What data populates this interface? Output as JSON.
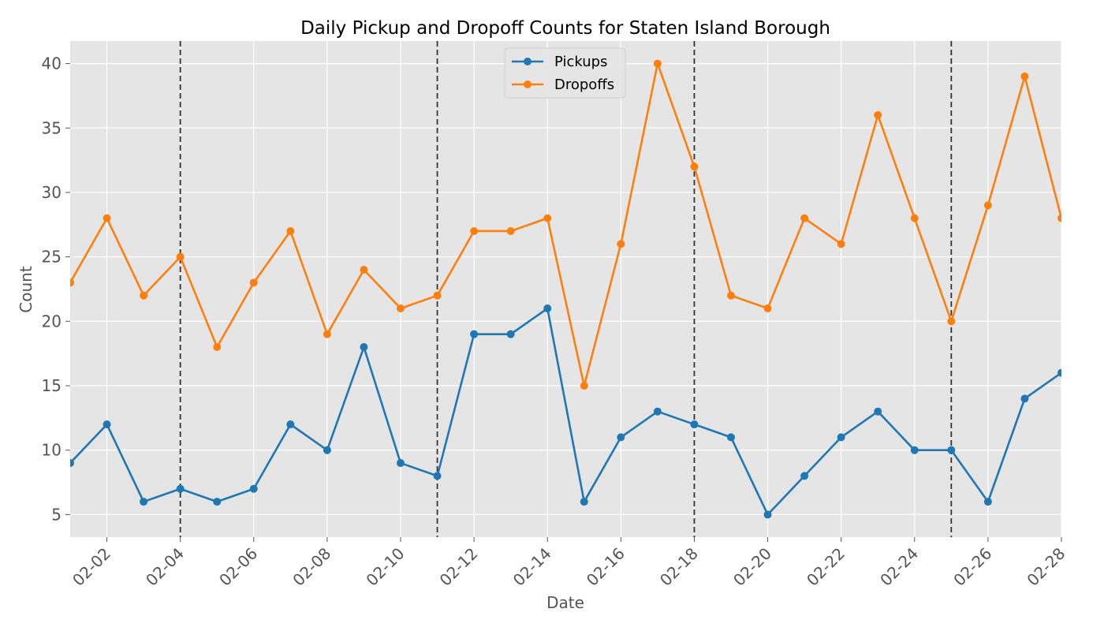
{
  "chart_data": {
    "type": "line",
    "title": "Daily Pickup and Dropoff Counts for Staten Island Borough",
    "xlabel": "Date",
    "ylabel": "Count",
    "x": [
      "2024-02-01",
      "2024-02-02",
      "2024-02-03",
      "2024-02-04",
      "2024-02-05",
      "2024-02-06",
      "2024-02-07",
      "2024-02-08",
      "2024-02-09",
      "2024-02-10",
      "2024-02-11",
      "2024-02-12",
      "2024-02-13",
      "2024-02-14",
      "2024-02-15",
      "2024-02-16",
      "2024-02-17",
      "2024-02-18",
      "2024-02-19",
      "2024-02-20",
      "2024-02-21",
      "2024-02-22",
      "2024-02-23",
      "2024-02-24",
      "2024-02-25",
      "2024-02-26",
      "2024-02-27",
      "2024-02-28"
    ],
    "x_ticks": [
      "02-02",
      "02-04",
      "02-06",
      "02-08",
      "02-10",
      "02-12",
      "02-14",
      "02-16",
      "02-18",
      "02-20",
      "02-22",
      "02-24",
      "02-26",
      "02-28"
    ],
    "y_ticks": [
      5,
      10,
      15,
      20,
      25,
      30,
      35,
      40
    ],
    "ylim": [
      3.25,
      41.75
    ],
    "series": [
      {
        "name": "Pickups",
        "color": "#1f77b4",
        "values": [
          9,
          12,
          6,
          7,
          6,
          7,
          12,
          10,
          18,
          9,
          8,
          19,
          19,
          21,
          6,
          11,
          13,
          12,
          11,
          5,
          8,
          11,
          13,
          10,
          10,
          6,
          14,
          16
        ]
      },
      {
        "name": "Dropoffs",
        "color": "#ff7f0e",
        "values": [
          23,
          28,
          22,
          25,
          18,
          23,
          27,
          19,
          24,
          21,
          22,
          27,
          27,
          28,
          15,
          26,
          40,
          32,
          22,
          21,
          28,
          26,
          36,
          28,
          20,
          29,
          39,
          28
        ]
      }
    ],
    "vertical_lines": [
      "2024-02-04",
      "2024-02-11",
      "2024-02-18",
      "2024-02-25"
    ],
    "grid": true,
    "legend_position": "upper center",
    "background": "#e5e5e5"
  }
}
